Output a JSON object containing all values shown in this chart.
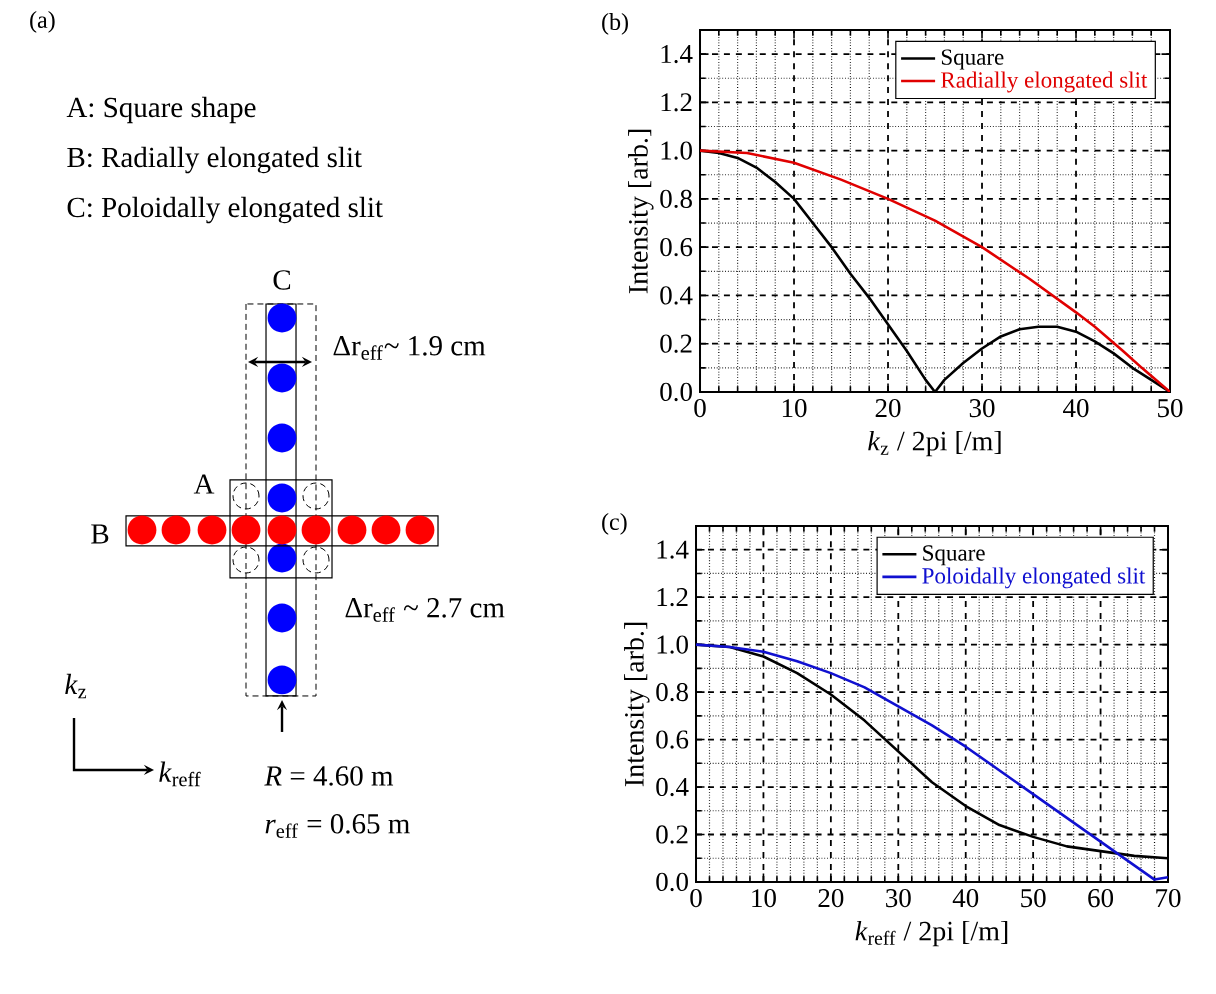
{
  "chart_data": [
    {
      "type": "other",
      "title": "(a)",
      "annotations": [
        "A: Square shape",
        "B: Radially elongated slit",
        "C: Poloidally elongated slit",
        "C",
        "A",
        "B",
        "Δr$_{eff}$~ 1.9 cm",
        "Δr$_{eff}$ ~ 2.7 cm",
        "*k*$_{z}$",
        "*k*$_{reff}$",
        "*R* = 4.60 m",
        "*r*$_{eff}$ = 0.65 m"
      ]
    },
    {
      "type": "line",
      "title": "(b)",
      "xlabel": "*k*$_{z}$ / 2pi [/m]",
      "ylabel": "Intensity [arb.]",
      "xlim": [
        0,
        50
      ],
      "ylim": [
        0,
        1.5
      ],
      "xticks": [
        0,
        10,
        20,
        30,
        40,
        50
      ],
      "yticks": [
        {
          "value": 0,
          "label": "0.0"
        },
        {
          "value": 0.2,
          "label": "0.2"
        },
        {
          "value": 0.4,
          "label": "0.4"
        },
        {
          "value": 0.6,
          "label": "0.6"
        },
        {
          "value": 0.8,
          "label": "0.8"
        },
        {
          "value": 1.0,
          "label": "1.0"
        },
        {
          "value": 1.2,
          "label": "1.2"
        },
        {
          "value": 1.4,
          "label": "1.4"
        }
      ],
      "grid": true,
      "legend": "top right",
      "marker": "none",
      "line_style": "solid",
      "series": [
        {
          "name": "Square",
          "color": "#000000",
          "x": [
            0,
            2,
            4,
            6,
            8,
            10,
            12,
            14,
            16,
            18,
            20,
            22,
            24,
            25,
            26,
            28,
            30,
            32,
            34,
            36,
            38,
            40,
            42,
            44,
            46,
            48,
            50
          ],
          "values": [
            1.0,
            0.99,
            0.97,
            0.93,
            0.87,
            0.8,
            0.7,
            0.6,
            0.49,
            0.39,
            0.28,
            0.17,
            0.05,
            0.0,
            0.05,
            0.12,
            0.18,
            0.23,
            0.26,
            0.27,
            0.27,
            0.25,
            0.21,
            0.16,
            0.1,
            0.05,
            0.0
          ]
        },
        {
          "name": "Radially elongated slit",
          "color": "#e00000",
          "x": [
            0,
            5,
            10,
            15,
            20,
            25,
            30,
            35,
            40,
            42,
            45,
            47,
            50
          ],
          "values": [
            1.0,
            0.99,
            0.95,
            0.88,
            0.8,
            0.71,
            0.6,
            0.47,
            0.33,
            0.27,
            0.17,
            0.1,
            0.0
          ]
        }
      ]
    },
    {
      "type": "line",
      "title": "(c)",
      "xlabel": "*k*$_{reff}$ / 2pi [/m]",
      "ylabel": "Intensity [arb.]",
      "xlim": [
        0,
        70
      ],
      "ylim": [
        0,
        1.5
      ],
      "xticks": [
        0,
        10,
        20,
        30,
        40,
        50,
        60,
        70
      ],
      "yticks": [
        {
          "value": 0,
          "label": "0.0"
        },
        {
          "value": 0.2,
          "label": "0.2"
        },
        {
          "value": 0.4,
          "label": "0.4"
        },
        {
          "value": 0.6,
          "label": "0.6"
        },
        {
          "value": 0.8,
          "label": "0.8"
        },
        {
          "value": 1.0,
          "label": "1.0"
        },
        {
          "value": 1.2,
          "label": "1.2"
        },
        {
          "value": 1.4,
          "label": "1.4"
        }
      ],
      "grid": true,
      "legend": "top right",
      "marker": "none",
      "line_style": "solid",
      "series": [
        {
          "name": "Square",
          "color": "#000000",
          "x": [
            0,
            5,
            10,
            15,
            20,
            25,
            30,
            35,
            40,
            45,
            50,
            55,
            60,
            65,
            70
          ],
          "values": [
            1.0,
            0.99,
            0.95,
            0.88,
            0.79,
            0.68,
            0.55,
            0.42,
            0.32,
            0.24,
            0.19,
            0.15,
            0.13,
            0.11,
            0.1
          ]
        },
        {
          "name": "Poloidally elongated slit",
          "color": "#1010d0",
          "x": [
            0,
            5,
            10,
            15,
            20,
            25,
            30,
            35,
            40,
            45,
            50,
            55,
            60,
            63,
            66,
            68,
            70
          ],
          "values": [
            1.0,
            0.99,
            0.97,
            0.93,
            0.88,
            0.82,
            0.74,
            0.66,
            0.57,
            0.47,
            0.37,
            0.27,
            0.17,
            0.11,
            0.05,
            0.01,
            0.02
          ]
        }
      ]
    }
  ]
}
